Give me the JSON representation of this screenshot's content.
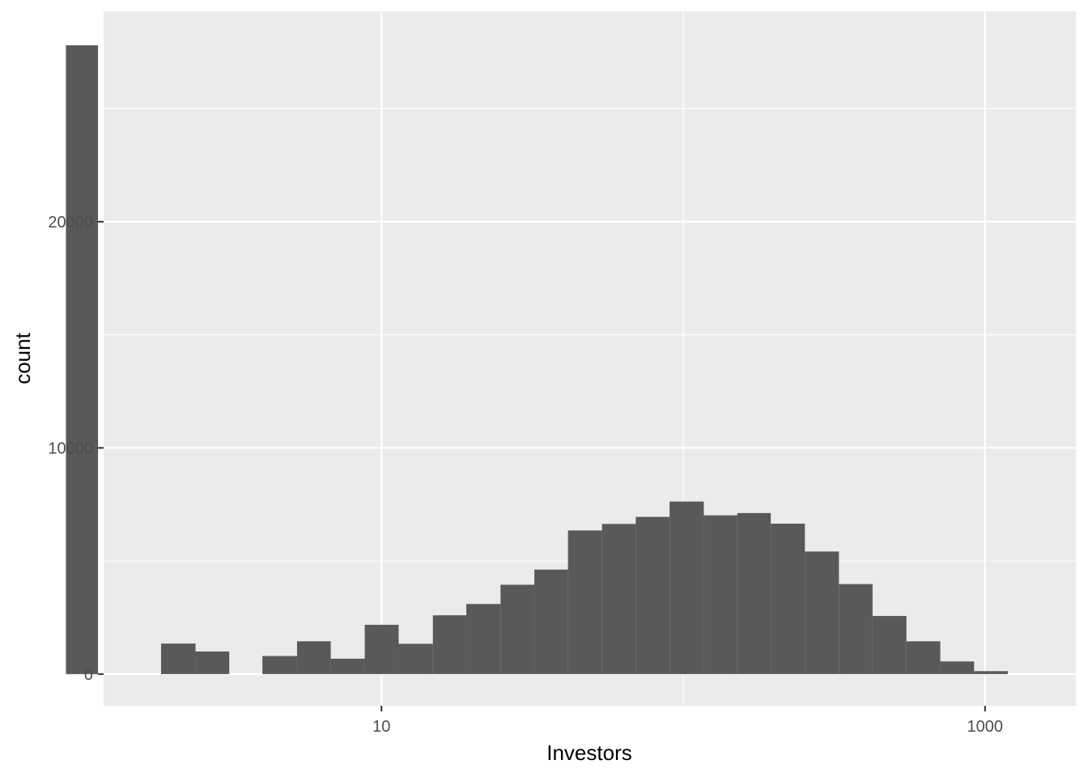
{
  "chart_data": {
    "type": "bar",
    "subtype": "histogram",
    "xlabel": "Investors",
    "ylabel": "count",
    "x_scale": "log10",
    "xlim": [
      1.2,
      2000
    ],
    "ylim": [
      -1400,
      29300
    ],
    "x_ticks": [
      {
        "value": 10,
        "label": "10"
      },
      {
        "value": 1000,
        "label": "1000"
      }
    ],
    "x_minor_ticks": [
      1,
      100
    ],
    "y_ticks": [
      {
        "value": 0,
        "label": "0"
      },
      {
        "value": 10000,
        "label": "10000"
      },
      {
        "value": 20000,
        "label": "20000"
      }
    ],
    "y_minor_ticks": [
      5000,
      15000,
      25000
    ],
    "grid": true,
    "bins": [
      {
        "x0": 0.9,
        "x1": 1.15,
        "count": 27800
      },
      {
        "x0": 1.86,
        "x1": 2.42,
        "count": 1350
      },
      {
        "x0": 2.42,
        "x1": 3.13,
        "count": 1000
      },
      {
        "x0": 4.03,
        "x1": 5.25,
        "count": 800
      },
      {
        "x0": 5.25,
        "x1": 6.79,
        "count": 1450
      },
      {
        "x0": 6.79,
        "x1": 8.8,
        "count": 680
      },
      {
        "x0": 8.8,
        "x1": 11.4,
        "count": 2180
      },
      {
        "x0": 11.4,
        "x1": 14.8,
        "count": 1340
      },
      {
        "x0": 14.8,
        "x1": 19.1,
        "count": 2600
      },
      {
        "x0": 19.1,
        "x1": 24.8,
        "count": 3100
      },
      {
        "x0": 24.8,
        "x1": 32.1,
        "count": 3950
      },
      {
        "x0": 32.1,
        "x1": 41.5,
        "count": 4620
      },
      {
        "x0": 41.5,
        "x1": 53.8,
        "count": 6350
      },
      {
        "x0": 53.8,
        "x1": 69.6,
        "count": 6640
      },
      {
        "x0": 69.6,
        "x1": 90.1,
        "count": 6950
      },
      {
        "x0": 90.1,
        "x1": 117,
        "count": 7630
      },
      {
        "x0": 117,
        "x1": 151,
        "count": 7020
      },
      {
        "x0": 151,
        "x1": 195,
        "count": 7120
      },
      {
        "x0": 195,
        "x1": 253,
        "count": 6650
      },
      {
        "x0": 253,
        "x1": 328,
        "count": 5420
      },
      {
        "x0": 328,
        "x1": 424,
        "count": 3980
      },
      {
        "x0": 424,
        "x1": 549,
        "count": 2570
      },
      {
        "x0": 549,
        "x1": 711,
        "count": 1450
      },
      {
        "x0": 711,
        "x1": 920,
        "count": 560
      },
      {
        "x0": 920,
        "x1": 1190,
        "count": 130
      }
    ],
    "colors": {
      "panel": "#ebebeb",
      "grid_major": "#ffffff",
      "grid_minor": "#f5f5f5",
      "bar": "#595959",
      "tick": "#333333"
    }
  }
}
